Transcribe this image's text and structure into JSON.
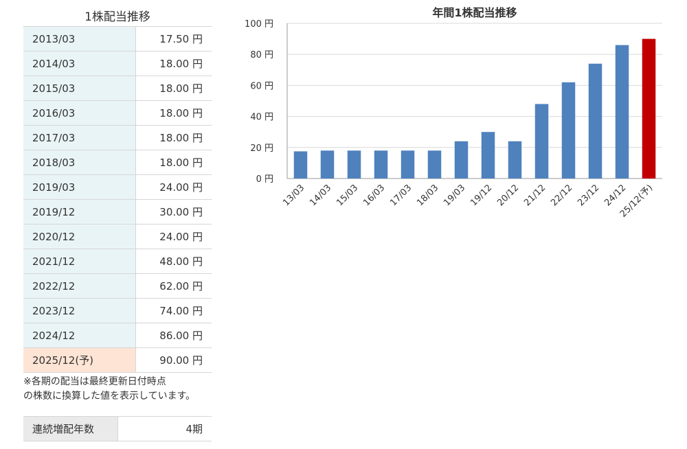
{
  "table": {
    "title": "1株配当推移",
    "rows": [
      {
        "period": "2013/03",
        "amount": "17.50 円"
      },
      {
        "period": "2014/03",
        "amount": "18.00 円"
      },
      {
        "period": "2015/03",
        "amount": "18.00 円"
      },
      {
        "period": "2016/03",
        "amount": "18.00 円"
      },
      {
        "period": "2017/03",
        "amount": "18.00 円"
      },
      {
        "period": "2018/03",
        "amount": "18.00 円"
      },
      {
        "period": "2019/03",
        "amount": "24.00 円"
      },
      {
        "period": "2019/12",
        "amount": "30.00 円"
      },
      {
        "period": "2020/12",
        "amount": "24.00 円"
      },
      {
        "period": "2021/12",
        "amount": "48.00 円"
      },
      {
        "period": "2022/12",
        "amount": "62.00 円"
      },
      {
        "period": "2023/12",
        "amount": "74.00 円"
      },
      {
        "period": "2024/12",
        "amount": "86.00 円"
      },
      {
        "period": "2025/12(予)",
        "amount": "90.00 円"
      }
    ],
    "note_line1": "※各期の配当は最終更新日付時点",
    "note_line2": "の株数に換算した値を表示しています。"
  },
  "streak": {
    "label": "連続増配年数",
    "value": "4期"
  },
  "colors": {
    "bar": "#4f81bd",
    "forecast_bar": "#c00000",
    "period_cell_bg": "#e9f4f6",
    "forecast_cell_bg": "#fde4d4"
  },
  "chart_data": {
    "type": "bar",
    "title": "年間1株配当推移",
    "categories": [
      "13/03",
      "14/03",
      "15/03",
      "16/03",
      "17/03",
      "18/03",
      "19/03",
      "19/12",
      "20/12",
      "21/12",
      "22/12",
      "23/12",
      "24/12",
      "25/12(予)"
    ],
    "values": [
      17.5,
      18,
      18,
      18,
      18,
      18,
      24,
      30,
      24,
      48,
      62,
      74,
      86,
      90
    ],
    "forecast_index": 13,
    "ylim": [
      0,
      100
    ],
    "yticks": [
      0,
      20,
      40,
      60,
      80,
      100
    ],
    "ytick_labels": [
      "0 円",
      "20 円",
      "40 円",
      "60 円",
      "80 円",
      "100 円"
    ],
    "grid": true,
    "xlabel": "",
    "ylabel": ""
  }
}
